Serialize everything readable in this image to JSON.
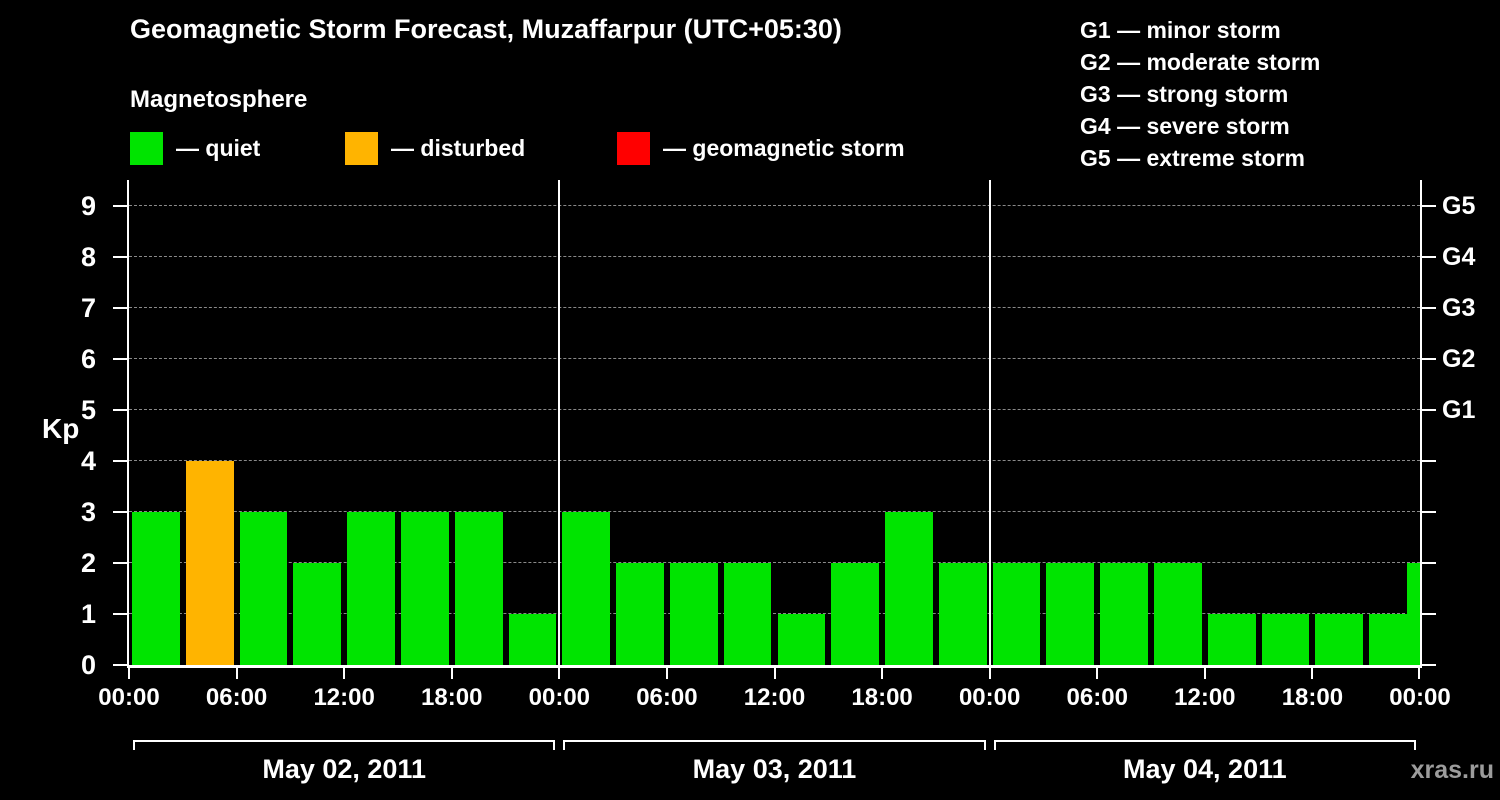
{
  "header": {
    "title": "Geomagnetic Storm Forecast, Muzaffarpur (UTC+05:30)",
    "subtitle": "Magnetosphere"
  },
  "legend": {
    "items": [
      {
        "name": "quiet",
        "label": "— quiet",
        "color": "#00e400"
      },
      {
        "name": "disturbed",
        "label": "— disturbed",
        "color": "#ffb400"
      },
      {
        "name": "storm",
        "label": "— geomagnetic storm",
        "color": "#ff0000"
      }
    ]
  },
  "g_scale_legend": {
    "items": [
      "G1 — minor storm",
      "G2 — moderate storm",
      "G3 — strong storm",
      "G4 — severe storm",
      "G5 — extreme storm"
    ]
  },
  "watermark": "xras.ru",
  "chart_data": {
    "type": "bar",
    "title": "Geomagnetic Storm Forecast, Muzaffarpur (UTC+05:30)",
    "ylabel": "Kp",
    "ylim": [
      0,
      9.5
    ],
    "yticks": [
      0,
      1,
      2,
      3,
      4,
      5,
      6,
      7,
      8,
      9
    ],
    "right_axis_ticks": [
      {
        "label": "G1",
        "value": 5
      },
      {
        "label": "G2",
        "value": 6
      },
      {
        "label": "G3",
        "value": 7
      },
      {
        "label": "G4",
        "value": 8
      },
      {
        "label": "G5",
        "value": 9
      }
    ],
    "x_time_labels": [
      "00:00",
      "06:00",
      "12:00",
      "18:00"
    ],
    "closing_time_label": "00:00",
    "bar_interval_hours": 3,
    "days": [
      {
        "date": "May 02, 2011",
        "kp_values": [
          3,
          4,
          3,
          2,
          3,
          3,
          3,
          1
        ]
      },
      {
        "date": "May 03, 2011",
        "kp_values": [
          3,
          2,
          2,
          2,
          1,
          2,
          3,
          2
        ]
      },
      {
        "date": "May 04, 2011",
        "kp_values": [
          2,
          2,
          2,
          2,
          1,
          1,
          1,
          1
        ]
      }
    ],
    "trailing_bar_value": 2,
    "color_rules": {
      "quiet_max_kp": 3,
      "disturbed_max_kp": 4,
      "quiet_color": "#00e400",
      "disturbed_color": "#ffb400",
      "storm_color": "#ff0000"
    },
    "grid": true,
    "legend_position": "top"
  }
}
